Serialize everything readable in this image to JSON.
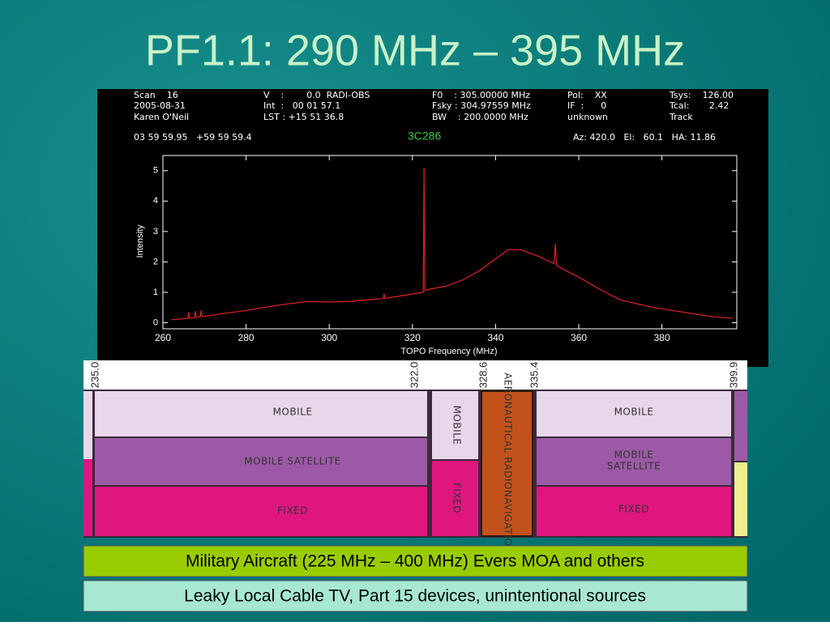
{
  "title": "PF1.1:  290 MHz – 395 MHz",
  "header": {
    "rows": [
      [
        "Scan    16",
        "V    :        0.0  RADI-OBS",
        "F0    : 305.00000 MHz",
        "Pol:    XX",
        "Tsys:    126.00"
      ],
      [
        "2005-08-31",
        "Int  :   00 01 57.1",
        "Fsky : 304.97559 MHz",
        "IF  :      0",
        "Tcal:       2.42"
      ],
      [
        "Karen O'Neil",
        "LST : +15 51 36.8",
        "BW    : 200.0000 MHz",
        "unknown",
        "Track"
      ]
    ],
    "position": "03 59 59.95   +59 59 59.4",
    "source": "3C286",
    "pointing": "Az: 420.0   El:   60.1   HA: 11.86"
  },
  "chart_data": {
    "type": "line",
    "x_label": "TOPO Frequency (MHz)",
    "y_label": "Intensity",
    "color": "#d42020",
    "xlim": [
      260,
      398
    ],
    "ylim": [
      -0.2,
      5.5
    ],
    "xticks": [
      260,
      280,
      300,
      320,
      340,
      360,
      380
    ],
    "yticks": [
      0,
      1,
      2,
      3,
      4,
      5
    ],
    "x": [
      262,
      264,
      266,
      266.2,
      266.4,
      267.6,
      267.8,
      268,
      269,
      269.2,
      269.4,
      272,
      276,
      280,
      285,
      290,
      295,
      300,
      305,
      310,
      313,
      313.2,
      313.4,
      318,
      322.6,
      322.8,
      323,
      324,
      328,
      332,
      336,
      340,
      343,
      346,
      350,
      354,
      354.4,
      354.6,
      355,
      360,
      365,
      370,
      378,
      385,
      392,
      397
    ],
    "values": [
      0.1,
      0.12,
      0.15,
      0.35,
      0.15,
      0.17,
      0.38,
      0.18,
      0.2,
      0.4,
      0.2,
      0.25,
      0.33,
      0.4,
      0.52,
      0.62,
      0.7,
      0.68,
      0.7,
      0.76,
      0.8,
      0.95,
      0.8,
      0.9,
      1.0,
      5.1,
      1.05,
      1.1,
      1.2,
      1.4,
      1.7,
      2.1,
      2.4,
      2.4,
      2.2,
      1.95,
      2.6,
      1.9,
      1.85,
      1.5,
      1.1,
      0.75,
      0.5,
      0.35,
      0.2,
      0.15
    ]
  },
  "allocation": {
    "frequencies": [
      "235.0",
      "322.0",
      "328.6",
      "335.4",
      "399.9"
    ],
    "left": [
      "MOBILE",
      "MOBILE SATELLITE",
      "FIXED"
    ],
    "middle": [
      "MOBILE",
      "FIXED"
    ],
    "aeronautical": "AERONAUTICAL RADIONAVIGATION",
    "right": [
      "MOBILE",
      "MOBILE",
      "SATELLITE",
      "FIXED"
    ]
  },
  "notes": [
    "Military Aircraft (225 MHz – 400 MHz) Evers MOA and others",
    "Leaky Local Cable TV, Part 15 devices, unintentional sources"
  ]
}
